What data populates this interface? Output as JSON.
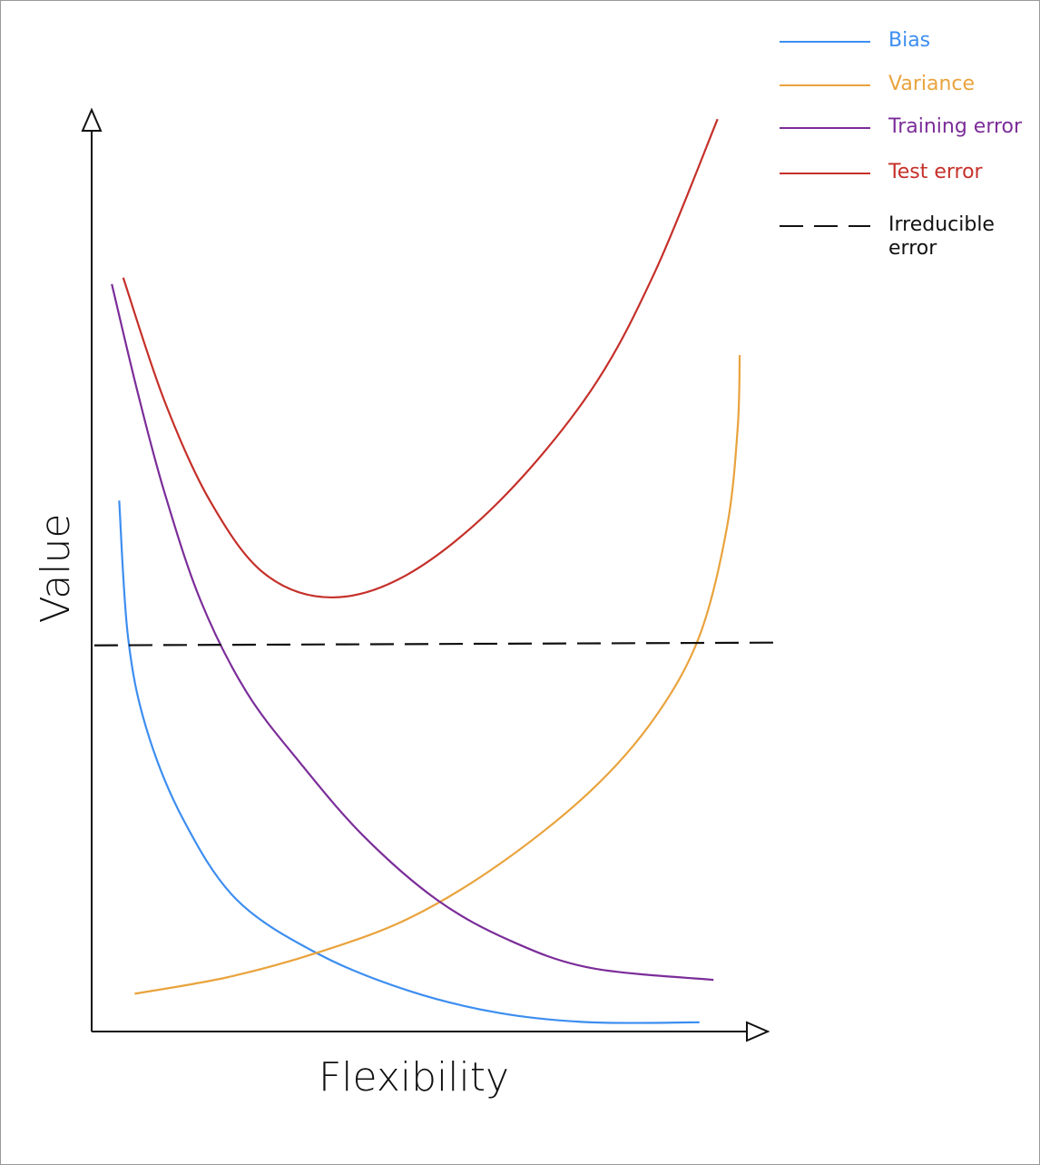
{
  "chart_data": {
    "type": "line",
    "x_label": "Flexibility",
    "y_label": "Value",
    "xlim": [
      0,
      100
    ],
    "ylim": [
      0,
      100
    ],
    "grid": false,
    "legend": "top-right",
    "series": [
      {
        "name": "Bias",
        "color": "#3d8ef0",
        "line_style": "solid",
        "x": [
          4.1,
          5.4,
          8.1,
          13.5,
          21.6,
          33.8,
          47.3,
          60.8,
          74.3,
          90.5
        ],
        "values": [
          57.6,
          42.9,
          33.0,
          23.2,
          14.3,
          8.4,
          4.4,
          2.0,
          1.0,
          1.0
        ]
      },
      {
        "name": "Variance",
        "color": "#e9a33d",
        "line_style": "solid",
        "x": [
          6.4,
          20.3,
          33.8,
          47.3,
          60.8,
          74.3,
          83.8,
          90.5,
          94.6,
          96.2,
          96.5
        ],
        "values": [
          4.1,
          5.9,
          8.6,
          12.3,
          18.2,
          26.1,
          34.0,
          42.9,
          54.7,
          65.5,
          73.4
        ]
      },
      {
        "name": "Training error",
        "color": "#7b2d99",
        "line_style": "solid",
        "x": [
          3.0,
          6.8,
          10.8,
          16.2,
          23.0,
          31.1,
          40.5,
          51.4,
          62.2,
          74.3,
          92.6
        ],
        "values": [
          81.1,
          69.5,
          58.6,
          46.8,
          36.9,
          29.1,
          21.2,
          14.3,
          9.9,
          6.9,
          5.6
        ]
      },
      {
        "name": "Test error",
        "color": "#c5302a",
        "line_style": "solid",
        "x": [
          4.7,
          10.8,
          17.6,
          25.7,
          35.8,
          47.3,
          60.8,
          74.3,
          83.8,
          93.2
        ],
        "values": [
          81.8,
          68.5,
          57.6,
          49.7,
          47.1,
          49.7,
          57.6,
          69.5,
          82.3,
          99.0
        ]
      },
      {
        "name": "Irreducible error",
        "color": "#111111",
        "line_style": "dashed",
        "x": [
          0.4,
          102.7
        ],
        "values": [
          41.9,
          42.2
        ]
      }
    ]
  }
}
